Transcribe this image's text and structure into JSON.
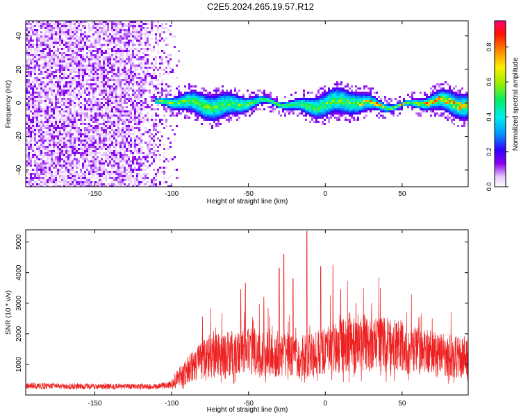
{
  "title": "C2E5.2024.265.19.57.R12",
  "chart_data": [
    {
      "type": "heatmap",
      "title": "C2E5.2024.265.19.57.R12",
      "xlabel": "Height of straight line (km)",
      "ylabel": "Frequency (Hz)",
      "xlim": [
        -195,
        93
      ],
      "ylim": [
        -50,
        49
      ],
      "xticks": [
        -150,
        -100,
        -50,
        0,
        50
      ],
      "yticks": [
        -40,
        -20,
        0,
        20,
        40
      ],
      "noise_region_x": [
        -195,
        -95
      ],
      "signal_region_x": [
        -112,
        93
      ],
      "signal_band_hz": [
        -10,
        8
      ],
      "colorbar": {
        "label": "Normalized spectral amplitude",
        "range": [
          0,
          0.95
        ],
        "ticks": [
          0.0,
          0.2,
          0.4,
          0.6,
          0.8
        ]
      }
    },
    {
      "type": "line",
      "xlabel": "Height of straight line (km)",
      "ylabel": "SNR (10 * v/v)",
      "xlim": [
        -195,
        93
      ],
      "ylim": [
        0,
        5400
      ],
      "xticks": [
        -150,
        -100,
        -50,
        0,
        50
      ],
      "yticks": [
        1000,
        2000,
        3000,
        4000,
        5000
      ],
      "color": "#ee2222",
      "envelope_x": [
        -195,
        -150,
        -110,
        -100,
        -95,
        -90,
        -85,
        -80,
        -70,
        -60,
        -50,
        -40,
        -30,
        -20,
        -10,
        0,
        10,
        20,
        30,
        40,
        50,
        60,
        70,
        80,
        93
      ],
      "envelope_y": [
        300,
        280,
        270,
        350,
        600,
        800,
        1000,
        1150,
        1300,
        1400,
        1500,
        1350,
        1300,
        1250,
        1300,
        1450,
        1600,
        1700,
        1750,
        1650,
        1550,
        1450,
        1350,
        1300,
        1250
      ],
      "peaks": [
        {
          "x": -80,
          "y": 2550
        },
        {
          "x": -55,
          "y": 3450
        },
        {
          "x": -52,
          "y": 3650
        },
        {
          "x": -40,
          "y": 3200
        },
        {
          "x": -30,
          "y": 4150
        },
        {
          "x": -27,
          "y": 4600
        },
        {
          "x": -21,
          "y": 3800
        },
        {
          "x": -12,
          "y": 5350
        },
        {
          "x": -3,
          "y": 4200
        },
        {
          "x": 5,
          "y": 4250
        },
        {
          "x": 10,
          "y": 3450
        },
        {
          "x": 20,
          "y": 3000
        }
      ]
    }
  ]
}
